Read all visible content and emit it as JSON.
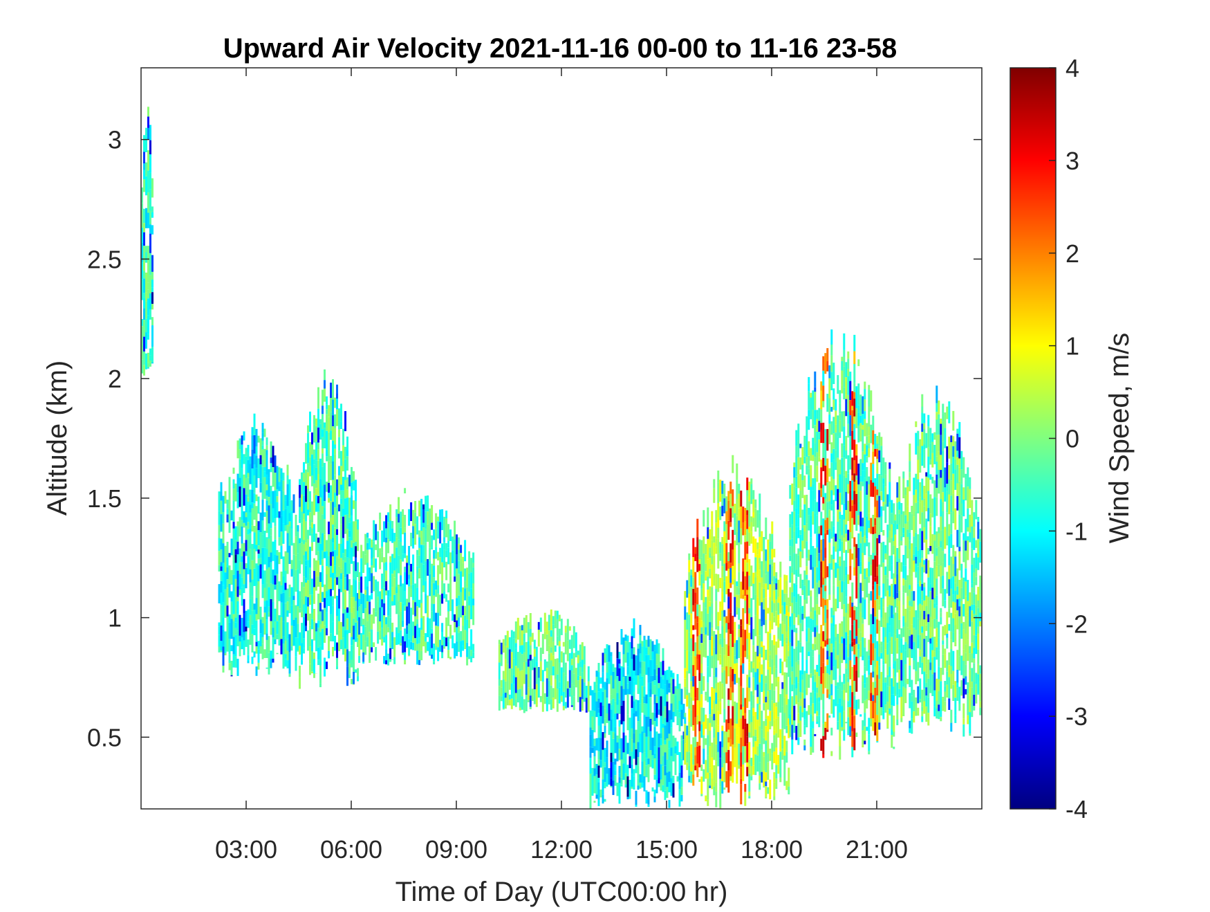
{
  "chart_data": {
    "type": "heatmap",
    "title": "Upward Air Velocity 2021-11-16 00-00 to 11-16 23-58",
    "xlabel": "Time of Day (UTC00:00 hr)",
    "ylabel": "Altitude (km)",
    "colorbar_label": "Wind Speed, m/s",
    "x_unit": "hours UTC",
    "xlim": [
      0,
      24
    ],
    "ylim": [
      0.2,
      3.3
    ],
    "clim": [
      -4,
      4
    ],
    "colormap": "jet",
    "x_ticks": [
      {
        "value": 3,
        "label": "03:00"
      },
      {
        "value": 6,
        "label": "06:00"
      },
      {
        "value": 9,
        "label": "09:00"
      },
      {
        "value": 12,
        "label": "12:00"
      },
      {
        "value": 15,
        "label": "15:00"
      },
      {
        "value": 18,
        "label": "18:00"
      },
      {
        "value": 21,
        "label": "21:00"
      }
    ],
    "y_ticks": [
      {
        "value": 0.5,
        "label": "0.5"
      },
      {
        "value": 1.0,
        "label": "1"
      },
      {
        "value": 1.5,
        "label": "1.5"
      },
      {
        "value": 2.0,
        "label": "2"
      },
      {
        "value": 2.5,
        "label": "2.5"
      },
      {
        "value": 3.0,
        "label": "3"
      }
    ],
    "colorbar_ticks": [
      {
        "value": 4,
        "label": "4"
      },
      {
        "value": 3,
        "label": "3"
      },
      {
        "value": 2,
        "label": "2"
      },
      {
        "value": 1,
        "label": "1"
      },
      {
        "value": 0,
        "label": "0"
      },
      {
        "value": -1,
        "label": "-1"
      },
      {
        "value": -2,
        "label": "-2"
      },
      {
        "value": -3,
        "label": "-3"
      },
      {
        "value": -4,
        "label": "-4"
      }
    ],
    "coverage_regions": [
      {
        "x_start": 0.0,
        "x_end": 0.35,
        "y_bottom": 1.95,
        "y_top": 3.25,
        "mean_velocity": -0.6
      },
      {
        "x_start": 2.2,
        "x_end": 4.5,
        "y_bottom": 0.75,
        "y_top": 1.9,
        "mean_velocity": -0.7
      },
      {
        "x_start": 4.5,
        "x_end": 6.2,
        "y_bottom": 0.7,
        "y_top": 2.05,
        "mean_velocity": -0.4
      },
      {
        "x_start": 6.2,
        "x_end": 9.5,
        "y_bottom": 0.8,
        "y_top": 1.55,
        "mean_velocity": -0.5
      },
      {
        "x_start": 10.2,
        "x_end": 12.8,
        "y_bottom": 0.6,
        "y_top": 1.05,
        "mean_velocity": -0.2
      },
      {
        "x_start": 12.8,
        "x_end": 15.5,
        "y_bottom": 0.2,
        "y_top": 1.0,
        "mean_velocity": -0.9
      },
      {
        "x_start": 15.5,
        "x_end": 18.5,
        "y_bottom": 0.2,
        "y_top": 1.7,
        "mean_velocity": 0.3
      },
      {
        "x_start": 18.5,
        "x_end": 21.5,
        "y_bottom": 0.4,
        "y_top": 2.25,
        "mean_velocity": -0.3
      },
      {
        "x_start": 21.5,
        "x_end": 24.0,
        "y_bottom": 0.5,
        "y_top": 2.0,
        "mean_velocity": -0.2
      }
    ],
    "strong_updraft_bands_hours": [
      15.8,
      16.8,
      17.2,
      19.5,
      20.3,
      20.9
    ],
    "grid": false
  }
}
